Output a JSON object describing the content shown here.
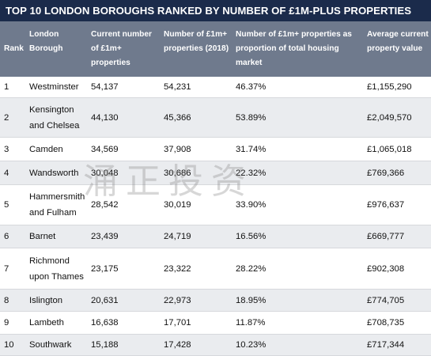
{
  "title": "TOP 10 LONDON BOROUGHS RANKED BY NUMBER OF £1M-PLUS PROPERTIES",
  "headers": {
    "rank": "Rank",
    "borough": "London Borough",
    "current": "Current number of £1m+ properties",
    "y2018": "Number of £1m+ properties (2018)",
    "proportion": "Number of £1m+ properties as proportion of total housing market",
    "average": "Average current property value"
  },
  "rows": [
    {
      "rank": "1",
      "borough": "Westminster",
      "current": "54,137",
      "y2018": "54,231",
      "proportion": "46.37%",
      "average": "£1,155,290"
    },
    {
      "rank": "2",
      "borough": "Kensington and Chelsea",
      "current": "44,130",
      "y2018": "45,366",
      "proportion": "53.89%",
      "average": "£2,049,570"
    },
    {
      "rank": "3",
      "borough": "Camden",
      "current": "34,569",
      "y2018": "37,908",
      "proportion": "31.74%",
      "average": "£1,065,018"
    },
    {
      "rank": "4",
      "borough": "Wandsworth",
      "current": "30,048",
      "y2018": "30,686",
      "proportion": "22.32%",
      "average": "£769,366"
    },
    {
      "rank": "5",
      "borough": "Hammersmith and Fulham",
      "current": "28,542",
      "y2018": "30,019",
      "proportion": "33.90%",
      "average": "£976,637"
    },
    {
      "rank": "6",
      "borough": "Barnet",
      "current": "23,439",
      "y2018": "24,719",
      "proportion": "16.56%",
      "average": "£669,777"
    },
    {
      "rank": "7",
      "borough": "Richmond upon Thames",
      "current": "23,175",
      "y2018": "23,322",
      "proportion": "28.22%",
      "average": "£902,308"
    },
    {
      "rank": "8",
      "borough": "Islington",
      "current": "20,631",
      "y2018": "22,973",
      "proportion": "18.95%",
      "average": "£774,705"
    },
    {
      "rank": "9",
      "borough": "Lambeth",
      "current": "16,638",
      "y2018": "17,701",
      "proportion": "11.87%",
      "average": "£708,735"
    },
    {
      "rank": "10",
      "borough": "Southwark",
      "current": "15,188",
      "y2018": "17,428",
      "proportion": "10.23%",
      "average": "£717,344"
    }
  ],
  "watermark": "涌正投资",
  "colors": {
    "title_bg": "#1b2b4b",
    "header_bg": "#6f7a8d",
    "alt_row_bg": "#eaecef"
  }
}
